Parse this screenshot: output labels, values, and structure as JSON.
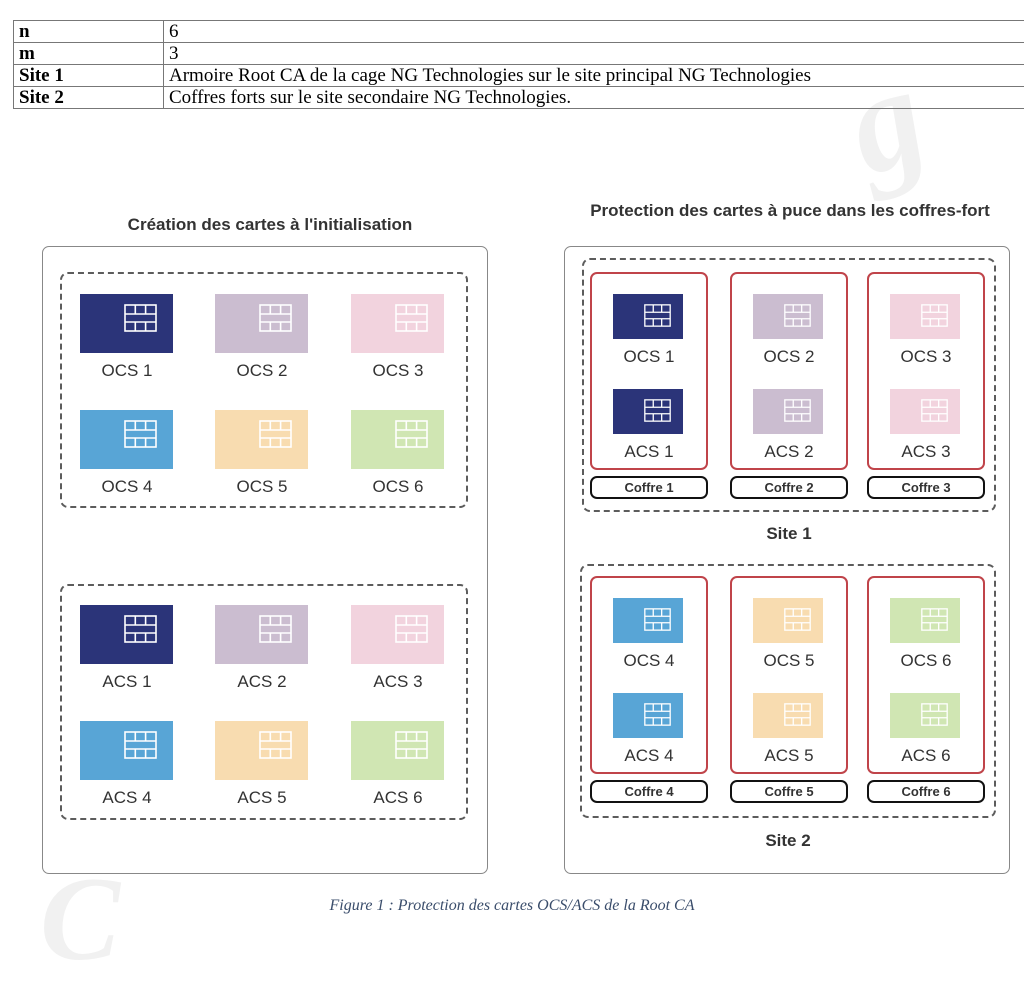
{
  "params_table": [
    {
      "key": "n",
      "value": "6"
    },
    {
      "key": "m",
      "value": "3"
    },
    {
      "key": "Site 1",
      "value": "Armoire Root CA de la cage NG Technologies sur le site principal NG Technologies"
    },
    {
      "key": "Site 2",
      "value": "Coffres forts sur le site secondaire NG Technologies."
    }
  ],
  "left_panel": {
    "title": "Création des cartes à l'initialisation",
    "ocs_group": [
      "OCS 1",
      "OCS 2",
      "OCS 3",
      "OCS 4",
      "OCS 5",
      "OCS 6"
    ],
    "acs_group": [
      "ACS 1",
      "ACS 2",
      "ACS 3",
      "ACS 4",
      "ACS 5",
      "ACS 6"
    ]
  },
  "right_panel": {
    "title": "Protection des cartes à puce dans les coffres-fort",
    "sites": [
      {
        "label": "Site 1",
        "vaults": [
          {
            "ocs": "OCS 1",
            "acs": "ACS 1",
            "coffre": "Coffre 1"
          },
          {
            "ocs": "OCS 2",
            "acs": "ACS 2",
            "coffre": "Coffre 2"
          },
          {
            "ocs": "OCS 3",
            "acs": "ACS 3",
            "coffre": "Coffre 3"
          }
        ]
      },
      {
        "label": "Site 2",
        "vaults": [
          {
            "ocs": "OCS 4",
            "acs": "ACS 4",
            "coffre": "Coffre 4"
          },
          {
            "ocs": "OCS 5",
            "acs": "ACS 5",
            "coffre": "Coffre 5"
          },
          {
            "ocs": "OCS 6",
            "acs": "ACS 6",
            "coffre": "Coffre 6"
          }
        ]
      }
    ]
  },
  "card_colors": [
    "#2b3479",
    "#cbbdd0",
    "#f2d3de",
    "#58a5d6",
    "#f8dcb0",
    "#d0e6b3"
  ],
  "vault_border_color": "#c0444a",
  "caption": "Figure 1 : Protection des cartes OCS/ACS de la Root CA"
}
